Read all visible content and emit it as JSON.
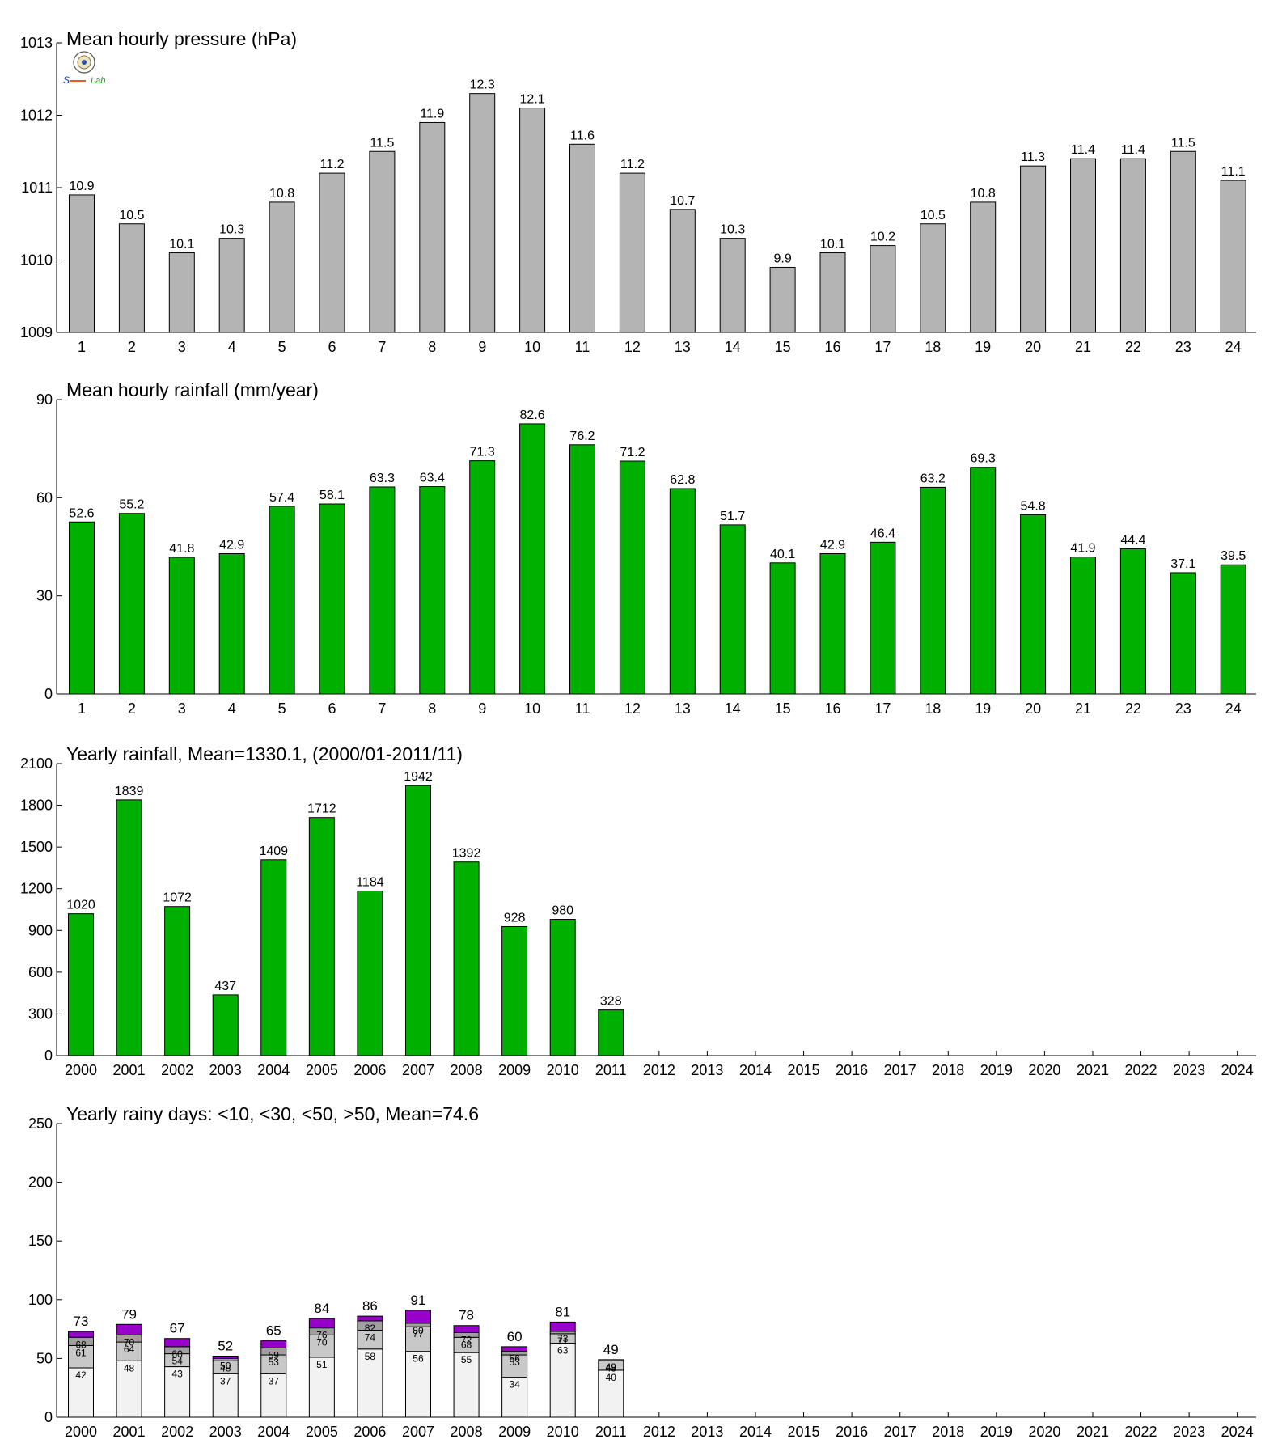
{
  "colors": {
    "gray": "#b4b4b4",
    "green": "#00b000",
    "purple": "#9900cc",
    "seg_light": "#f2f2f2",
    "seg_mid": "#c8c8c8",
    "seg_dark": "#a0a0a0"
  },
  "logo": {
    "text": "Lab"
  },
  "chart_data": [
    {
      "type": "bar",
      "title": "Mean hourly pressure (hPa)",
      "categories": [
        "1",
        "2",
        "3",
        "4",
        "5",
        "6",
        "7",
        "8",
        "9",
        "10",
        "11",
        "12",
        "13",
        "14",
        "15",
        "16",
        "17",
        "18",
        "19",
        "20",
        "21",
        "22",
        "23",
        "24"
      ],
      "values": [
        1010.9,
        1010.5,
        1010.1,
        1010.3,
        1010.8,
        1011.2,
        1011.5,
        1011.9,
        1012.3,
        1012.1,
        1011.6,
        1011.2,
        1010.7,
        1010.3,
        1009.9,
        1010.1,
        1010.2,
        1010.5,
        1010.8,
        1011.3,
        1011.4,
        1011.4,
        1011.5,
        1011.1
      ],
      "data_labels": [
        "10.9",
        "10.5",
        "10.1",
        "10.3",
        "10.8",
        "11.2",
        "11.5",
        "11.9",
        "12.3",
        "12.1",
        "11.6",
        "11.2",
        "10.7",
        "10.3",
        "9.9",
        "10.1",
        "10.2",
        "10.5",
        "10.8",
        "11.3",
        "11.4",
        "11.4",
        "11.5",
        "11.1"
      ],
      "ylim": [
        1009,
        1013
      ],
      "yticks": [
        1009,
        1010,
        1011,
        1012,
        1013
      ],
      "color": "#b4b4b4"
    },
    {
      "type": "bar",
      "title": "Mean hourly rainfall (mm/year)",
      "categories": [
        "1",
        "2",
        "3",
        "4",
        "5",
        "6",
        "7",
        "8",
        "9",
        "10",
        "11",
        "12",
        "13",
        "14",
        "15",
        "16",
        "17",
        "18",
        "19",
        "20",
        "21",
        "22",
        "23",
        "24"
      ],
      "values": [
        52.6,
        55.2,
        41.8,
        42.9,
        57.4,
        58.1,
        63.3,
        63.4,
        71.3,
        82.6,
        76.2,
        71.2,
        62.8,
        51.7,
        40.1,
        42.9,
        46.4,
        63.2,
        69.3,
        54.8,
        41.9,
        44.4,
        37.1,
        39.5
      ],
      "data_labels": [
        "52.6",
        "55.2",
        "41.8",
        "42.9",
        "57.4",
        "58.1",
        "63.3",
        "63.4",
        "71.3",
        "82.6",
        "76.2",
        "71.2",
        "62.8",
        "51.7",
        "40.1",
        "42.9",
        "46.4",
        "63.2",
        "69.3",
        "54.8",
        "41.9",
        "44.4",
        "37.1",
        "39.5"
      ],
      "ylim": [
        0,
        90
      ],
      "yticks": [
        0,
        30,
        60,
        90
      ],
      "color": "#00b000"
    },
    {
      "type": "bar",
      "title": "Yearly rainfall, Mean=1330.1, (2000/01-2011/11)",
      "categories": [
        "2000",
        "2001",
        "2002",
        "2003",
        "2004",
        "2005",
        "2006",
        "2007",
        "2008",
        "2009",
        "2010",
        "2011",
        "2012",
        "2013",
        "2014",
        "2015",
        "2016",
        "2017",
        "2018",
        "2019",
        "2020",
        "2021",
        "2022",
        "2023",
        "2024"
      ],
      "values": [
        1020,
        1839,
        1072,
        437,
        1409,
        1712,
        1184,
        1942,
        1392,
        928,
        980,
        328,
        null,
        null,
        null,
        null,
        null,
        null,
        null,
        null,
        null,
        null,
        null,
        null,
        null
      ],
      "data_labels": [
        "1020",
        "1839",
        "1072",
        "437",
        "1409",
        "1712",
        "1184",
        "1942",
        "1392",
        "928",
        "980",
        "328",
        "",
        "",
        "",
        "",
        "",
        "",
        "",
        "",
        "",
        "",
        "",
        "",
        ""
      ],
      "ylim": [
        0,
        2100
      ],
      "yticks": [
        0,
        300,
        600,
        900,
        1200,
        1500,
        1800,
        2100
      ],
      "color": "#00b000"
    },
    {
      "type": "bar",
      "stacked": true,
      "title": "Yearly rainy days: <10, <30, <50, >50, Mean=74.6",
      "categories": [
        "2000",
        "2001",
        "2002",
        "2003",
        "2004",
        "2005",
        "2006",
        "2007",
        "2008",
        "2009",
        "2010",
        "2011",
        "2012",
        "2013",
        "2014",
        "2015",
        "2016",
        "2017",
        "2018",
        "2019",
        "2020",
        "2021",
        "2022",
        "2023",
        "2024"
      ],
      "cumulative": [
        [
          42,
          61,
          68,
          73
        ],
        [
          48,
          64,
          70,
          79
        ],
        [
          43,
          54,
          60,
          67
        ],
        [
          37,
          48,
          50,
          52
        ],
        [
          37,
          53,
          59,
          65
        ],
        [
          51,
          70,
          76,
          84
        ],
        [
          58,
          74,
          82,
          86
        ],
        [
          56,
          77,
          80,
          91
        ],
        [
          55,
          68,
          72,
          78
        ],
        [
          34,
          53,
          56,
          60
        ],
        [
          63,
          71,
          73,
          81
        ],
        [
          40,
          48,
          49,
          49
        ],
        null,
        null,
        null,
        null,
        null,
        null,
        null,
        null,
        null,
        null,
        null,
        null,
        null
      ],
      "totals": [
        "73",
        "79",
        "67",
        "52",
        "65",
        "84",
        "86",
        "91",
        "78",
        "60",
        "81",
        "49",
        "",
        "",
        "",
        "",
        "",
        "",
        "",
        "",
        "",
        "",
        "",
        "",
        ""
      ],
      "segment_labels": [
        [
          "42",
          "61",
          "68"
        ],
        [
          "48",
          "64",
          "70"
        ],
        [
          "43",
          "54",
          "60"
        ],
        [
          "37",
          "48",
          "50"
        ],
        [
          "37",
          "53",
          "59"
        ],
        [
          "51",
          "70",
          "76"
        ],
        [
          "58",
          "74",
          "82"
        ],
        [
          "56",
          "77",
          "80"
        ],
        [
          "55",
          "68",
          "72"
        ],
        [
          "34",
          "53",
          "56"
        ],
        [
          "63",
          "71",
          "73"
        ],
        [
          "40",
          "48",
          "49"
        ],
        null,
        null,
        null,
        null,
        null,
        null,
        null,
        null,
        null,
        null,
        null,
        null,
        null
      ],
      "ylim": [
        0,
        250
      ],
      "yticks": [
        0,
        50,
        100,
        150,
        200,
        250
      ],
      "colors": [
        "#f2f2f2",
        "#c8c8c8",
        "#a0a0a0",
        "#9900cc"
      ]
    }
  ]
}
